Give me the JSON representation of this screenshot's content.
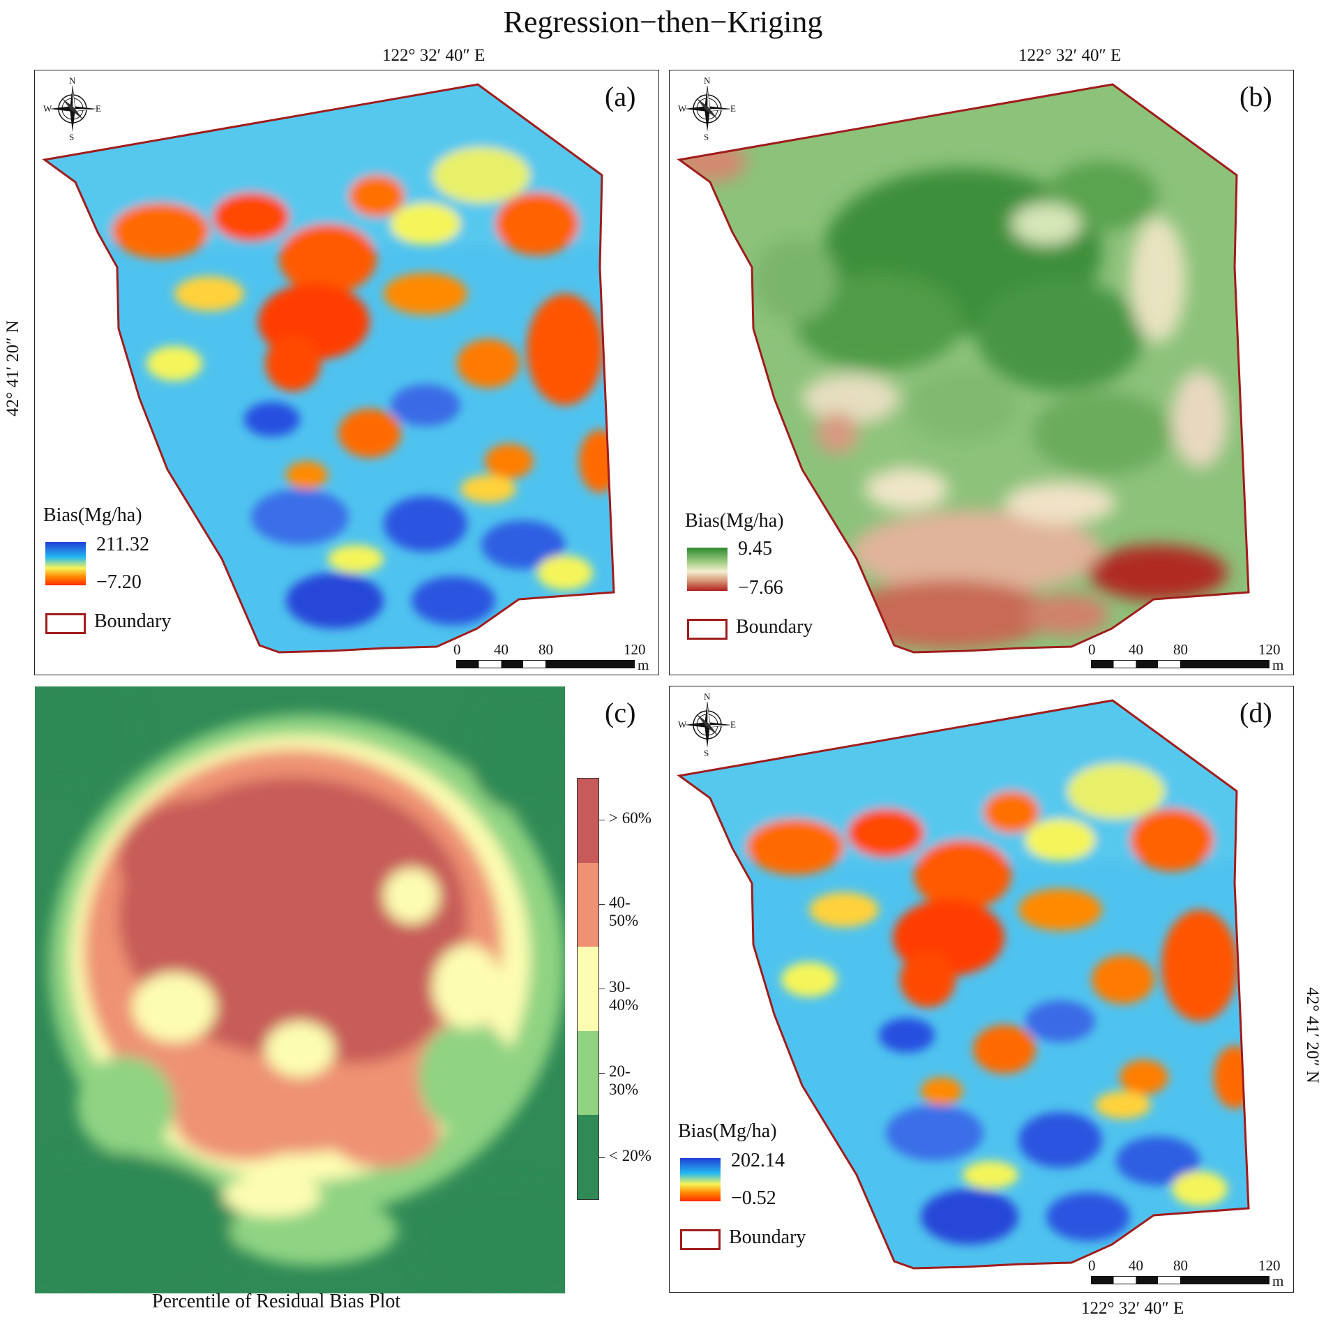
{
  "title": "Regression−then−Kriging",
  "coords": {
    "lon_a": "122° 32′ 40″ E",
    "lon_b": "122° 32′ 40″ E",
    "lon_d": "122° 32′ 40″ E",
    "lat_left": "42° 41′ 20″ N",
    "lat_right": "42° 41′ 20″ N"
  },
  "compass": {
    "n": "N",
    "s": "S",
    "e": "E",
    "w": "W",
    "icon": "north-arrow-compass-icon"
  },
  "panels": {
    "a": {
      "label": "(a)",
      "legend_title": "Bias(Mg/ha)",
      "max": "211.32",
      "min": "−7.20",
      "ramp_colors": [
        "#1f3fd6",
        "#23b8f0",
        "#f5f55a",
        "#ff8a00",
        "#ff2a00"
      ],
      "boundary_label": "Boundary"
    },
    "b": {
      "label": "(b)",
      "legend_title": "Bias(Mg/ha)",
      "max": "9.45",
      "min": "−7.66",
      "ramp_colors": [
        "#2e8a2e",
        "#a8cf8a",
        "#f5efd0",
        "#d58f72",
        "#b01f1f"
      ],
      "boundary_label": "Boundary"
    },
    "c": {
      "label": "(c)",
      "caption": "Percentile of  Residual Bias Plot",
      "classes": [
        {
          "label": "> 60%",
          "color": "#c75b59"
        },
        {
          "label": "40-50%",
          "color": "#ee9273"
        },
        {
          "label": "30-40%",
          "color": "#fdfdb2"
        },
        {
          "label": "20-30%",
          "color": "#8fd383"
        },
        {
          "label": "< 20%",
          "color": "#2f8a55"
        }
      ]
    },
    "d": {
      "label": "(d)",
      "legend_title": "Bias(Mg/ha)",
      "max": "202.14",
      "min": "−0.52",
      "ramp_colors": [
        "#1f3fd6",
        "#23b8f0",
        "#f5f55a",
        "#ff8a00",
        "#ff2a00"
      ],
      "boundary_label": "Boundary"
    }
  },
  "scale": {
    "ticks": [
      "0",
      "40",
      "80",
      "120"
    ],
    "unit": "m"
  },
  "colors": {
    "boundary": "#a01c1c"
  }
}
